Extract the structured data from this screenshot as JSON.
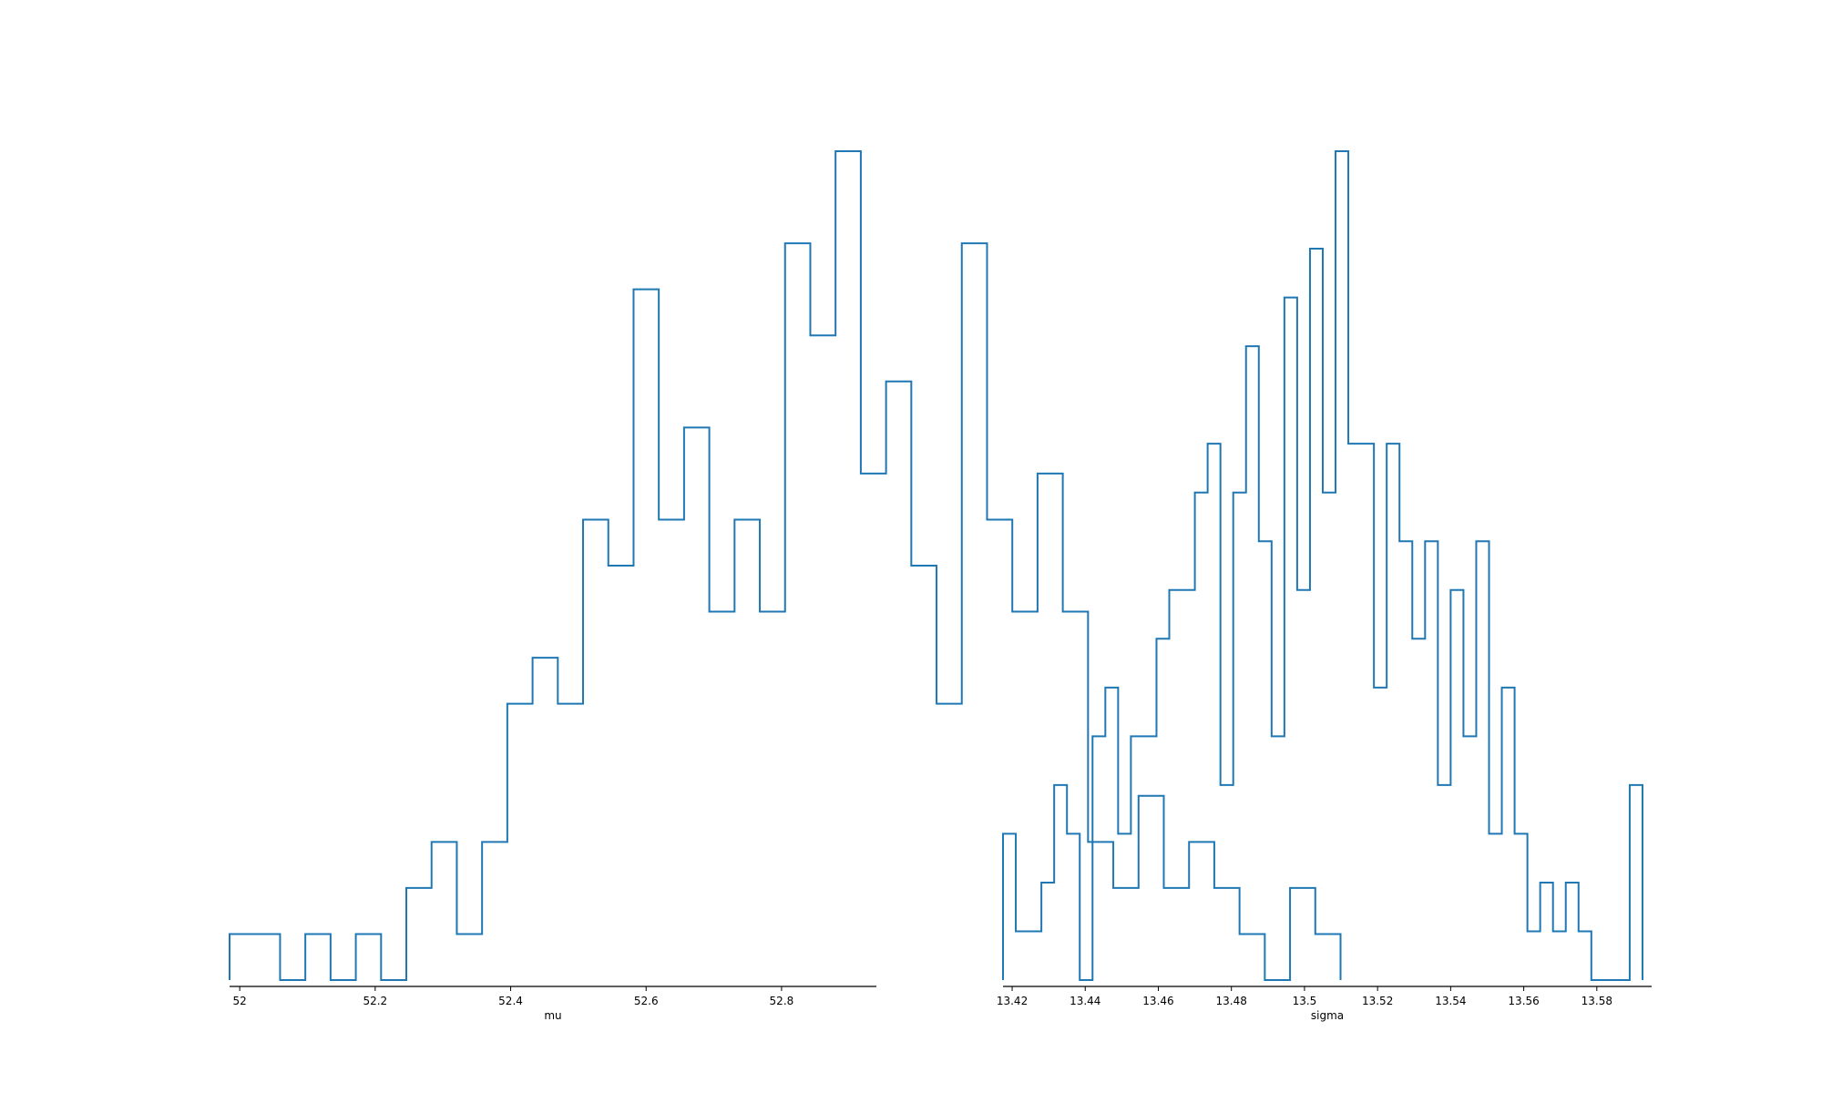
{
  "chart_data": [
    {
      "type": "histogram-step",
      "xlabel": "mu",
      "ylabel": "",
      "title": "",
      "xlim": [
        51.985,
        52.94
      ],
      "ylim": [
        0,
        18
      ],
      "x_ticks": [
        52,
        52.2,
        52.4,
        52.6,
        52.8
      ],
      "x_tick_labels": [
        "52",
        "52.2",
        "52.4",
        "52.6",
        "52.8"
      ],
      "bin_start": 51.985,
      "bin_width": 0.03728,
      "counts": [
        1,
        1,
        0,
        1,
        0,
        1,
        0,
        2,
        3,
        1,
        3,
        6,
        7,
        6,
        10,
        9,
        15,
        10,
        12,
        8,
        10,
        8,
        16,
        14,
        18,
        11,
        13,
        9,
        6,
        16,
        10,
        8,
        11,
        8,
        3,
        2,
        4,
        2,
        3,
        2,
        1,
        0,
        2,
        1
      ],
      "color": "#1f77b4",
      "grid": false,
      "legend": false
    },
    {
      "type": "histogram-step",
      "xlabel": "sigma",
      "ylabel": "",
      "title": "",
      "xlim": [
        13.4175,
        13.595
      ],
      "ylim": [
        0,
        17
      ],
      "x_ticks": [
        13.42,
        13.44,
        13.46,
        13.48,
        13.5,
        13.52,
        13.54,
        13.56,
        13.58
      ],
      "x_tick_labels": [
        "13.42",
        "13.44",
        "13.46",
        "13.48",
        "13.5",
        "13.52",
        "13.54",
        "13.56",
        "13.58"
      ],
      "bin_start": 13.4175,
      "bin_width": 0.0035,
      "counts": [
        3,
        1,
        1,
        2,
        4,
        3,
        0,
        5,
        6,
        3,
        5,
        5,
        7,
        8,
        8,
        10,
        11,
        4,
        10,
        13,
        9,
        5,
        14,
        8,
        15,
        10,
        17,
        11,
        11,
        6,
        11,
        9,
        7,
        9,
        4,
        8,
        5,
        9,
        3,
        6,
        3,
        1,
        2,
        1,
        2,
        1,
        0,
        0,
        0,
        4
      ],
      "color": "#1f77b4",
      "grid": false,
      "legend": false
    }
  ]
}
